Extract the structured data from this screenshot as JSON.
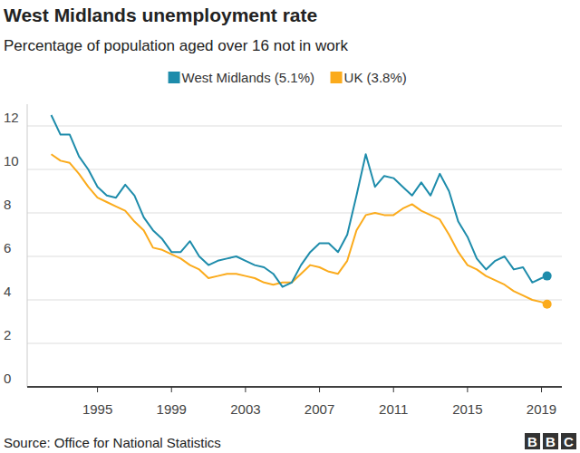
{
  "chart_data": {
    "type": "line",
    "title": "West Midlands unemployment rate",
    "subtitle": "Percentage of population aged over 16 not in work",
    "source": "Source: Office for National Statistics",
    "logo": "BBC",
    "legend": "top",
    "grid": true,
    "x": [
      1992.5,
      1993.0,
      1993.5,
      1994.0,
      1994.5,
      1995.0,
      1995.5,
      1996.0,
      1996.5,
      1997.0,
      1997.5,
      1998.0,
      1998.5,
      1999.0,
      1999.5,
      2000.0,
      2000.5,
      2001.0,
      2001.5,
      2002.0,
      2002.5,
      2003.0,
      2003.5,
      2004.0,
      2004.5,
      2005.0,
      2005.5,
      2006.0,
      2006.5,
      2007.0,
      2007.5,
      2008.0,
      2008.5,
      2009.0,
      2009.5,
      2010.0,
      2010.5,
      2011.0,
      2011.5,
      2012.0,
      2012.5,
      2013.0,
      2013.5,
      2014.0,
      2014.5,
      2015.0,
      2015.5,
      2016.0,
      2016.5,
      2017.0,
      2017.5,
      2018.0,
      2018.5,
      2019.0,
      2019.3
    ],
    "series": [
      {
        "name": "West Midlands (5.1%)",
        "color": "#1e8cab",
        "marker": "end",
        "values": [
          12.5,
          11.6,
          11.6,
          10.6,
          10.0,
          9.2,
          8.8,
          8.7,
          9.3,
          8.8,
          7.8,
          7.2,
          6.8,
          6.2,
          6.2,
          6.7,
          6.0,
          5.6,
          5.8,
          5.9,
          6.0,
          5.8,
          5.6,
          5.5,
          5.2,
          4.6,
          4.8,
          5.6,
          6.2,
          6.6,
          6.6,
          6.2,
          7.0,
          8.8,
          10.7,
          9.2,
          9.7,
          9.6,
          9.2,
          8.8,
          9.4,
          8.8,
          9.8,
          9.0,
          7.6,
          6.9,
          5.9,
          5.4,
          5.8,
          6.0,
          5.4,
          5.5,
          4.8,
          5.0,
          5.1
        ]
      },
      {
        "name": "UK (3.8%)",
        "color": "#fbab1c",
        "marker": "end",
        "values": [
          10.7,
          10.4,
          10.3,
          9.8,
          9.2,
          8.7,
          8.5,
          8.3,
          8.1,
          7.6,
          7.2,
          6.4,
          6.3,
          6.1,
          5.9,
          5.6,
          5.4,
          5.0,
          5.1,
          5.2,
          5.2,
          5.1,
          5.0,
          4.8,
          4.7,
          4.8,
          4.8,
          5.2,
          5.6,
          5.5,
          5.3,
          5.2,
          5.8,
          7.2,
          7.9,
          8.0,
          7.9,
          7.9,
          8.2,
          8.4,
          8.1,
          7.9,
          7.7,
          7.0,
          6.2,
          5.6,
          5.4,
          5.1,
          4.9,
          4.7,
          4.4,
          4.2,
          4.0,
          3.9,
          3.8
        ]
      }
    ],
    "xlim": [
      1991.2,
      2020.1
    ],
    "xticks": [
      1995,
      1999,
      2003,
      2007,
      2011,
      2015,
      2019
    ],
    "ylim": [
      0,
      13
    ],
    "yticks": [
      0,
      2,
      4,
      6,
      8,
      10,
      12
    ]
  }
}
